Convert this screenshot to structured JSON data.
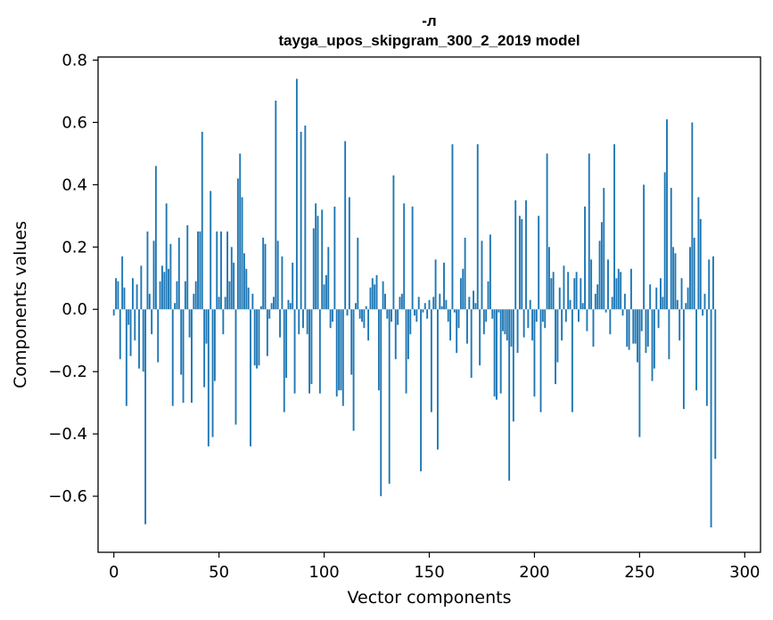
{
  "chart_data": {
    "type": "bar",
    "title": "-л",
    "subtitle": "tayga_upos_skipgram_300_2_2019 model",
    "xlabel": "Vector components",
    "ylabel": "Components values",
    "xlim": [
      -7.5,
      307.5
    ],
    "ylim": [
      -0.78,
      0.81
    ],
    "xticks": [
      0,
      50,
      100,
      150,
      200,
      250,
      300
    ],
    "xtick_labels": [
      "0",
      "50",
      "100",
      "150",
      "200",
      "250",
      "300"
    ],
    "yticks": [
      -0.6,
      -0.4,
      -0.2,
      0.0,
      0.2,
      0.4,
      0.6,
      0.8
    ],
    "ytick_labels": [
      "−0.6",
      "−0.4",
      "−0.2",
      "0.0",
      "0.2",
      "0.4",
      "0.6",
      "0.8"
    ],
    "bar_color": "#1f77b4",
    "grid": false,
    "series": [
      {
        "name": "-л",
        "values": [
          -0.02,
          0.1,
          0.09,
          -0.16,
          0.17,
          0.07,
          -0.31,
          -0.05,
          -0.15,
          0.1,
          -0.1,
          0.08,
          -0.19,
          0.14,
          -0.2,
          -0.69,
          0.25,
          0.05,
          -0.08,
          0.22,
          0.46,
          -0.17,
          0.09,
          0.14,
          0.12,
          0.34,
          0.13,
          0.21,
          -0.31,
          0.02,
          0.09,
          0.23,
          -0.21,
          -0.3,
          0.09,
          0.27,
          -0.09,
          -0.3,
          0.05,
          0.09,
          0.25,
          0.25,
          0.57,
          -0.25,
          -0.11,
          -0.44,
          0.38,
          -0.41,
          -0.23,
          0.25,
          0.04,
          0.25,
          -0.08,
          0.04,
          0.25,
          0.09,
          0.2,
          0.15,
          -0.37,
          0.42,
          0.5,
          0.36,
          0.18,
          0.13,
          0.07,
          -0.44,
          0.05,
          -0.18,
          -0.19,
          -0.18,
          0.01,
          0.23,
          0.21,
          -0.15,
          -0.03,
          0.02,
          0.04,
          0.67,
          0.22,
          -0.09,
          0.17,
          -0.33,
          -0.22,
          0.03,
          0.02,
          0.15,
          -0.27,
          0.74,
          -0.08,
          0.57,
          -0.06,
          0.59,
          -0.08,
          -0.27,
          -0.24,
          0.26,
          0.34,
          0.3,
          -0.27,
          0.32,
          0.08,
          0.11,
          0.2,
          -0.06,
          -0.04,
          0.33,
          -0.28,
          -0.26,
          -0.26,
          -0.31,
          0.54,
          -0.02,
          0.36,
          -0.21,
          -0.39,
          0.02,
          0.23,
          -0.03,
          -0.04,
          -0.06,
          0.01,
          -0.1,
          0.07,
          0.1,
          0.08,
          0.11,
          -0.26,
          -0.6,
          0.09,
          0.05,
          -0.03,
          -0.56,
          -0.04,
          0.43,
          -0.16,
          -0.05,
          0.04,
          0.05,
          0.34,
          -0.27,
          -0.16,
          -0.08,
          0.33,
          -0.02,
          -0.04,
          0.04,
          -0.52,
          -0.01,
          0.02,
          -0.03,
          0.03,
          -0.33,
          0.04,
          0.16,
          -0.45,
          0.05,
          0.01,
          0.15,
          0.03,
          -0.04,
          -0.1,
          0.53,
          -0.01,
          -0.14,
          -0.06,
          0.1,
          0.13,
          0.23,
          -0.11,
          0.04,
          -0.22,
          0.06,
          0.02,
          0.53,
          -0.18,
          0.22,
          -0.08,
          -0.04,
          0.09,
          0.24,
          -0.03,
          -0.28,
          -0.29,
          -0.01,
          -0.27,
          -0.07,
          -0.08,
          -0.1,
          -0.55,
          -0.12,
          -0.36,
          0.35,
          -0.14,
          0.3,
          0.29,
          -0.09,
          0.35,
          -0.06,
          0.03,
          -0.1,
          -0.28,
          -0.04,
          0.3,
          -0.33,
          -0.04,
          -0.06,
          0.5,
          0.2,
          0.1,
          0.12,
          -0.24,
          -0.17,
          0.07,
          -0.1,
          0.14,
          -0.04,
          0.12,
          0.03,
          -0.33,
          0.1,
          0.12,
          -0.04,
          0.1,
          0.02,
          0.33,
          -0.07,
          0.5,
          0.16,
          -0.12,
          0.05,
          0.08,
          0.22,
          0.28,
          0.39,
          -0.01,
          0.16,
          -0.08,
          0.04,
          0.53,
          0.1,
          0.13,
          0.12,
          -0.02,
          0.05,
          -0.12,
          -0.13,
          0.13,
          -0.11,
          -0.11,
          -0.17,
          -0.41,
          -0.07,
          0.4,
          -0.14,
          -0.12,
          0.08,
          -0.23,
          -0.19,
          0.07,
          -0.06,
          0.1,
          0.04,
          0.44,
          0.61,
          -0.16,
          0.39,
          0.2,
          0.18,
          0.03,
          -0.1,
          0.1,
          -0.32,
          0.02,
          0.07,
          0.2,
          0.6,
          0.23,
          -0.26,
          0.36,
          0.29,
          -0.02,
          0.05,
          -0.31,
          0.16,
          -0.7,
          0.17,
          -0.48
        ]
      }
    ]
  }
}
